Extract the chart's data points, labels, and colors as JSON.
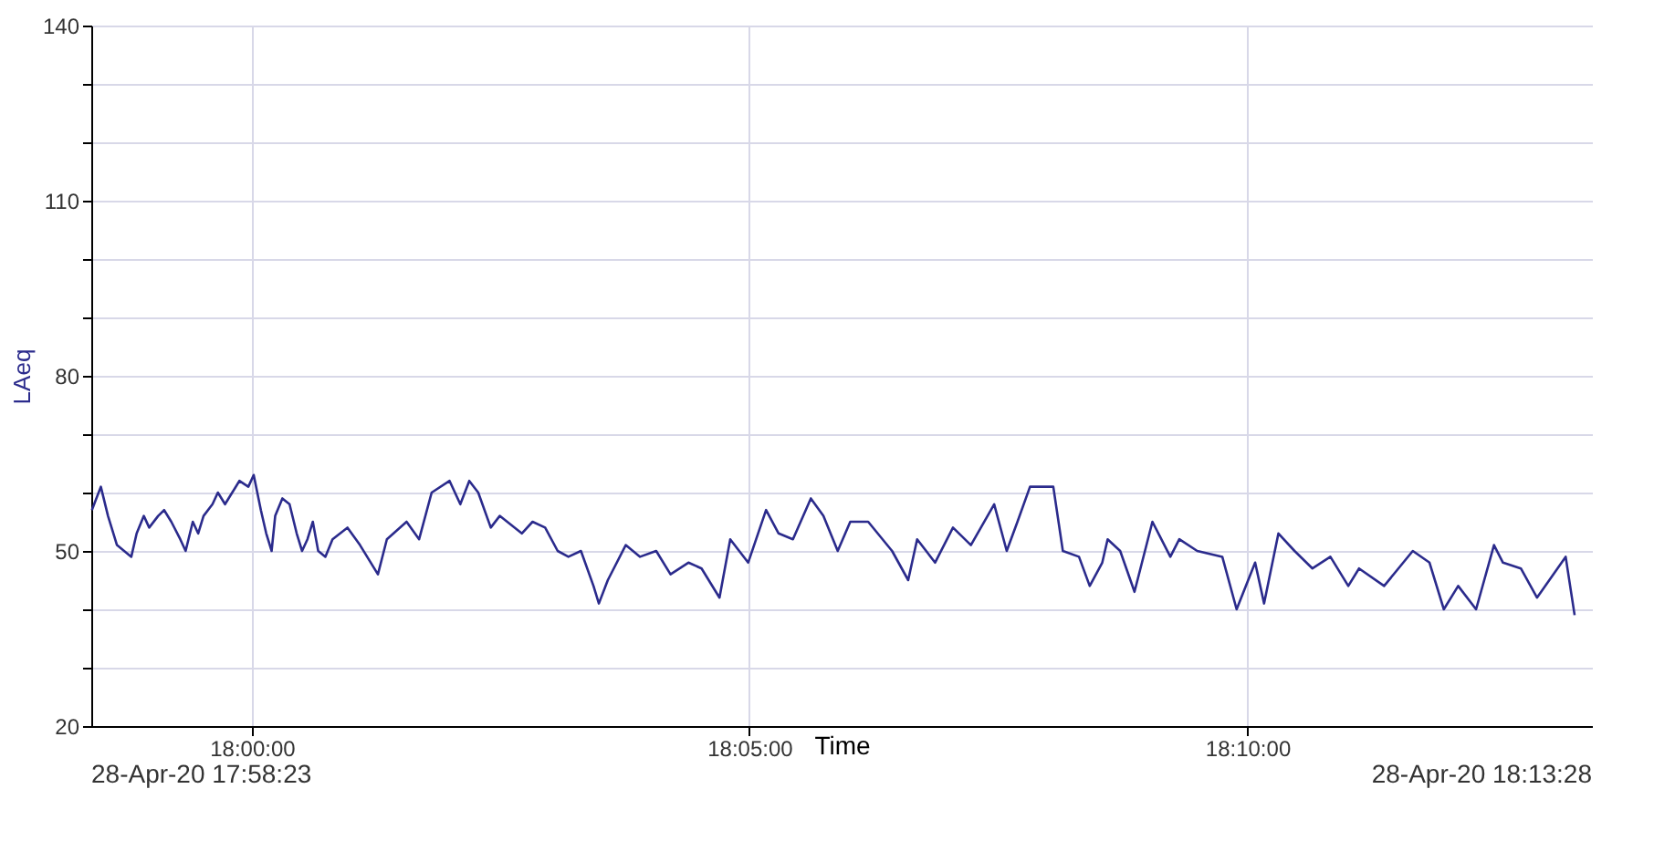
{
  "chart_data": {
    "type": "line",
    "xlabel": "Time",
    "ylabel": "LAeq",
    "x": [
      17.9732,
      17.9747,
      17.9759,
      17.9774,
      17.9786,
      17.9798,
      17.9807,
      17.9819,
      17.9828,
      17.9843,
      17.9853,
      17.9865,
      17.988,
      17.9889,
      17.9901,
      17.991,
      17.9919,
      17.9934,
      17.9943,
      17.9955,
      17.9967,
      17.9979,
      17.9994,
      18.0003,
      18.0015,
      18.0024,
      18.0033,
      18.0039,
      18.0051,
      18.0063,
      18.0075,
      18.0084,
      18.0093,
      18.0102,
      18.0111,
      18.0123,
      18.0135,
      18.016,
      18.0181,
      18.0211,
      18.0226,
      18.0259,
      18.028,
      18.0301,
      18.0331,
      18.0349,
      18.0364,
      18.0379,
      18.04,
      18.0415,
      18.0452,
      18.047,
      18.0491,
      18.0512,
      18.053,
      18.0551,
      18.0572,
      18.0581,
      18.0596,
      18.0626,
      18.065,
      18.0677,
      18.0701,
      18.0731,
      18.0753,
      18.0783,
      18.0801,
      18.0831,
      18.0861,
      18.0882,
      18.0906,
      18.0936,
      18.0957,
      18.0981,
      18.1002,
      18.1032,
      18.1072,
      18.1099,
      18.1114,
      18.1144,
      18.1174,
      18.1204,
      18.1243,
      18.1264,
      18.1282,
      18.1303,
      18.1342,
      18.1358,
      18.1385,
      18.1403,
      18.1424,
      18.1433,
      18.1454,
      18.1478,
      18.1508,
      18.1538,
      18.1553,
      18.1583,
      18.1625,
      18.1649,
      18.168,
      18.1695,
      18.1719,
      18.1746,
      18.1776,
      18.1806,
      18.1836,
      18.1854,
      18.1896,
      18.1944,
      18.1972,
      18.1996,
      18.202,
      18.205,
      18.208,
      18.2095,
      18.2125,
      18.2152,
      18.22,
      18.2215
    ],
    "series": [
      {
        "color": "#2b2b8c",
        "values": [
          57,
          61,
          56,
          51,
          50,
          49,
          53,
          56,
          54,
          56,
          57,
          55,
          52,
          50,
          55,
          53,
          56,
          58,
          60,
          58,
          60,
          62,
          61,
          63,
          57,
          53,
          50,
          56,
          59,
          58,
          53,
          50,
          52,
          55,
          50,
          49,
          52,
          54,
          51,
          46,
          52,
          55,
          52,
          60,
          62,
          58,
          62,
          60,
          54,
          56,
          53,
          55,
          54,
          50,
          49,
          50,
          44,
          41,
          45,
          51,
          49,
          50,
          46,
          48,
          47,
          42,
          52,
          48,
          57,
          53,
          52,
          59,
          56,
          50,
          55,
          55,
          50,
          45,
          52,
          48,
          54,
          51,
          58,
          50,
          55,
          61,
          61,
          50,
          49,
          44,
          48,
          52,
          50,
          43,
          55,
          49,
          52,
          50,
          49,
          40,
          48,
          41,
          53,
          50,
          47,
          49,
          44,
          47,
          44,
          50,
          48,
          40,
          44,
          40,
          51,
          48,
          47,
          42,
          49,
          39
        ]
      }
    ],
    "xlim": [
      17.9731,
      18.2244
    ],
    "xticks": [
      {
        "value": 18.0,
        "label": "18:00:00"
      },
      {
        "value": 18.0833,
        "label": "18:05:00"
      },
      {
        "value": 18.1667,
        "label": "18:10:00"
      }
    ],
    "annotations": [
      "28-Apr-20 17:58:23",
      "28-Apr-20 18:13:28"
    ],
    "ylim": [
      20,
      140
    ],
    "yticks": [
      20,
      {
        "value": 30,
        "label": null
      },
      {
        "value": 40,
        "label": null
      },
      50,
      {
        "value": 60,
        "label": null
      },
      {
        "value": 70,
        "label": null
      },
      80,
      {
        "value": 90,
        "label": null
      },
      {
        "value": 100,
        "label": null
      },
      110,
      {
        "value": 120,
        "label": null
      },
      {
        "value": 130,
        "label": null
      },
      140
    ],
    "grid": true,
    "marker": "none",
    "line_style": "solid"
  }
}
